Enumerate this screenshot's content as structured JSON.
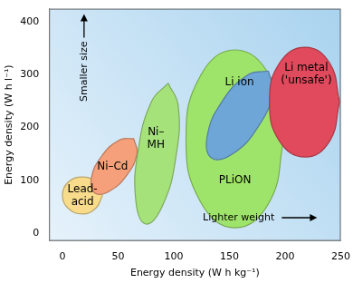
{
  "chart_data": {
    "type": "region",
    "x_label": "Energy density (W h kg⁻¹)",
    "y_label": "Energy density (W h l⁻¹)",
    "xlim": [
      -12,
      250
    ],
    "xticks": [
      0,
      50,
      100,
      150,
      200,
      250
    ],
    "ylim": [
      -15,
      425
    ],
    "yticks": [
      0,
      100,
      200,
      300,
      400
    ],
    "grid": false,
    "annotations": [
      "Smaller size",
      "Lighter weight"
    ],
    "series": [
      {
        "name": [
          "Lead-",
          "acid"
        ],
        "color": "#f8dc8c",
        "points": [
          [
            36,
            71
          ],
          [
            30,
            96
          ],
          [
            18,
            106
          ],
          [
            5,
            96
          ],
          [
            0,
            71
          ],
          [
            5,
            47
          ],
          [
            18,
            36
          ],
          [
            30,
            47
          ]
        ],
        "label_at": [
          18,
          71
        ]
      },
      {
        "name": [
          "Ni–Cd"
        ],
        "color": "#f5a07a",
        "points": [
          [
            64,
            179
          ],
          [
            67,
            151
          ],
          [
            58,
            110
          ],
          [
            42,
            79
          ],
          [
            29,
            76
          ],
          [
            26,
            104
          ],
          [
            35,
            145
          ],
          [
            51,
            176
          ]
        ],
        "label_at": [
          45,
          125
        ]
      },
      {
        "name": [
          "Ni–",
          "MH"
        ],
        "color": "#a6e27a",
        "points": [
          [
            95,
            284
          ],
          [
            104,
            241
          ],
          [
            102,
            145
          ],
          [
            90,
            52
          ],
          [
            75,
            17
          ],
          [
            66,
            60
          ],
          [
            68,
            156
          ],
          [
            80,
            249
          ]
        ],
        "label_at": [
          84,
          178
        ]
      },
      {
        "name": [
          "PLiON"
        ],
        "color": "#9fe46a",
        "points": [
          [
            199,
            179
          ],
          [
            186,
            298
          ],
          [
            155,
            347
          ],
          [
            124,
            298
          ],
          [
            111,
            179
          ],
          [
            124,
            59
          ],
          [
            155,
            10
          ],
          [
            186,
            59
          ]
        ],
        "label_at": [
          155,
          99
        ]
      },
      {
        "name": [
          "Li ion"
        ],
        "color": "#6ea6d8",
        "points": [
          [
            185,
            307
          ],
          [
            189,
            267
          ],
          [
            176,
            202
          ],
          [
            153,
            150
          ],
          [
            134,
            142
          ],
          [
            130,
            183
          ],
          [
            143,
            248
          ],
          [
            166,
            299
          ]
        ],
        "label_at": [
          159,
          286
        ]
      },
      {
        "name": [
          "Li metal",
          "('unsafe')"
        ],
        "color": "#e04a5c",
        "points": [
          [
            249,
            248
          ],
          [
            240,
            322
          ],
          [
            218,
            352
          ],
          [
            195,
            322
          ],
          [
            186,
            248
          ],
          [
            195,
            174
          ],
          [
            218,
            144
          ],
          [
            240,
            174
          ]
        ],
        "label_at": [
          219,
          301
        ]
      }
    ]
  }
}
